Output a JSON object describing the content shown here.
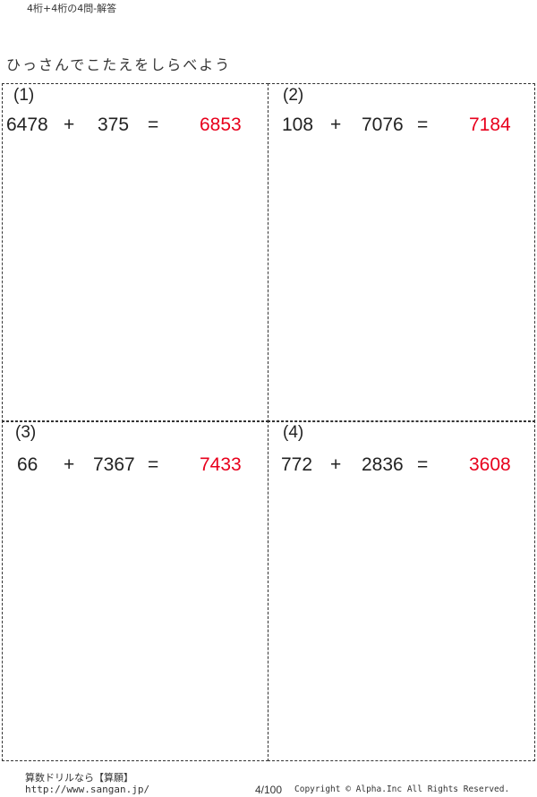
{
  "header": {
    "title": "4桁+4桁の4問-解答"
  },
  "instruction": "ひっさんでこたえをしらべよう",
  "problems": [
    {
      "label": "(1)",
      "a": "6478",
      "op": "+",
      "b": "375",
      "eq": "=",
      "answer": "6853"
    },
    {
      "label": "(2)",
      "a": "108",
      "op": "+",
      "b": "7076",
      "eq": "=",
      "answer": "7184"
    },
    {
      "label": "(3)",
      "a": "66",
      "op": "+",
      "b": "7367",
      "eq": "=",
      "answer": "7433"
    },
    {
      "label": "(4)",
      "a": "772",
      "op": "+",
      "b": "2836",
      "eq": "=",
      "answer": "3608"
    }
  ],
  "colors": {
    "answer": "#e8001c"
  },
  "footer": {
    "brand": "算数ドリルなら【算願】",
    "url": "http://www.sangan.jp/",
    "page": "4/100",
    "copyright": "Copyright © Alpha.Inc All Rights Reserved."
  }
}
